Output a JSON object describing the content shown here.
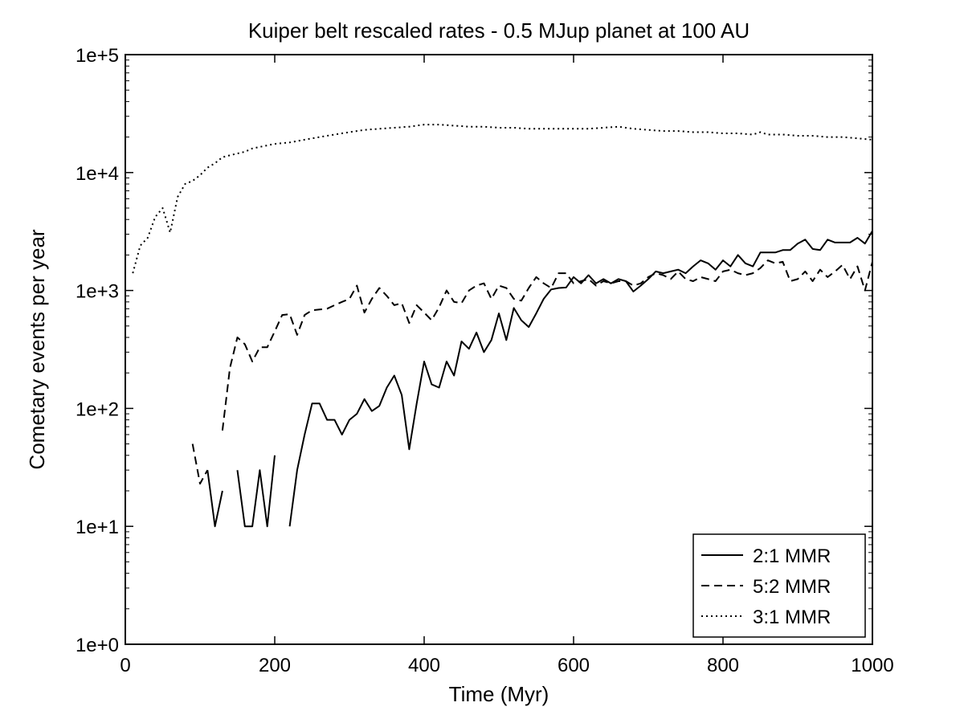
{
  "chart_data": {
    "type": "line",
    "title": "Kuiper belt rescaled rates - 0.5 MJup planet at 100 AU",
    "xlabel": "Time (Myr)",
    "ylabel": "Cometary events per year",
    "xlim": [
      0,
      1000
    ],
    "ylim": [
      1,
      100000
    ],
    "yscale": "log",
    "xticks": [
      0,
      200,
      400,
      600,
      800,
      1000
    ],
    "xtick_labels": [
      "0",
      "200",
      "400",
      "600",
      "800",
      "1000"
    ],
    "yticks": [
      1,
      10,
      100,
      1000,
      10000,
      100000
    ],
    "ytick_labels": [
      "1e+0",
      "1e+1",
      "1e+2",
      "1e+3",
      "1e+4",
      "1e+5"
    ],
    "grid": false,
    "legend_position": "bottom-right",
    "series": [
      {
        "name": "2:1 MMR",
        "style": "solid",
        "segments": [
          [
            [
              110,
              30
            ],
            [
              120,
              10
            ],
            [
              130,
              20
            ]
          ],
          [
            [
              150,
              30
            ],
            [
              160,
              10
            ],
            [
              170,
              10
            ],
            [
              180,
              30
            ],
            [
              190,
              10
            ],
            [
              200,
              40
            ]
          ],
          [
            [
              220,
              10
            ],
            [
              230,
              30
            ],
            [
              240,
              60
            ],
            [
              250,
              110
            ],
            [
              260,
              110
            ],
            [
              270,
              80
            ],
            [
              280,
              80
            ],
            [
              290,
              60
            ],
            [
              300,
              80
            ],
            [
              310,
              90
            ],
            [
              320,
              120
            ],
            [
              330,
              95
            ],
            [
              340,
              105
            ],
            [
              350,
              150
            ],
            [
              360,
              190
            ],
            [
              370,
              130
            ],
            [
              380,
              45
            ],
            [
              390,
              110
            ],
            [
              400,
              250
            ],
            [
              410,
              160
            ],
            [
              420,
              150
            ],
            [
              430,
              250
            ],
            [
              440,
              190
            ],
            [
              450,
              370
            ],
            [
              460,
              320
            ],
            [
              470,
              440
            ],
            [
              480,
              300
            ],
            [
              490,
              380
            ],
            [
              500,
              640
            ],
            [
              510,
              380
            ],
            [
              520,
              710
            ],
            [
              530,
              560
            ],
            [
              540,
              490
            ],
            [
              550,
              640
            ],
            [
              560,
              850
            ],
            [
              570,
              1020
            ],
            [
              580,
              1050
            ],
            [
              590,
              1060
            ],
            [
              600,
              1300
            ],
            [
              610,
              1150
            ],
            [
              620,
              1350
            ],
            [
              630,
              1150
            ],
            [
              640,
              1250
            ],
            [
              650,
              1150
            ],
            [
              660,
              1250
            ],
            [
              670,
              1200
            ],
            [
              680,
              980
            ],
            [
              690,
              1100
            ],
            [
              700,
              1250
            ],
            [
              710,
              1450
            ],
            [
              720,
              1400
            ],
            [
              730,
              1450
            ],
            [
              740,
              1500
            ],
            [
              750,
              1400
            ],
            [
              760,
              1600
            ],
            [
              770,
              1800
            ],
            [
              780,
              1700
            ],
            [
              790,
              1500
            ],
            [
              800,
              1800
            ],
            [
              810,
              1600
            ],
            [
              820,
              2000
            ],
            [
              830,
              1700
            ],
            [
              840,
              1600
            ],
            [
              850,
              2100
            ],
            [
              860,
              2100
            ],
            [
              870,
              2100
            ],
            [
              880,
              2200
            ],
            [
              890,
              2200
            ],
            [
              900,
              2500
            ],
            [
              910,
              2700
            ],
            [
              920,
              2250
            ],
            [
              930,
              2200
            ],
            [
              940,
              2700
            ],
            [
              950,
              2550
            ],
            [
              960,
              2550
            ],
            [
              970,
              2550
            ],
            [
              980,
              2800
            ],
            [
              990,
              2500
            ],
            [
              1000,
              3200
            ]
          ]
        ]
      },
      {
        "name": "5:2 MMR",
        "style": "dashed",
        "segments": [
          [
            [
              90,
              50
            ],
            [
              100,
              23
            ],
            [
              110,
              30
            ]
          ],
          [
            [
              130,
              65
            ],
            [
              140,
              220
            ],
            [
              150,
              400
            ],
            [
              160,
              350
            ],
            [
              170,
              250
            ],
            [
              180,
              330
            ],
            [
              190,
              330
            ],
            [
              200,
              450
            ],
            [
              210,
              620
            ],
            [
              220,
              630
            ],
            [
              230,
              420
            ],
            [
              240,
              620
            ],
            [
              250,
              680
            ],
            [
              260,
              690
            ],
            [
              270,
              700
            ],
            [
              280,
              750
            ],
            [
              290,
              800
            ],
            [
              300,
              850
            ],
            [
              310,
              1100
            ],
            [
              320,
              650
            ],
            [
              330,
              850
            ],
            [
              340,
              1050
            ],
            [
              350,
              900
            ],
            [
              360,
              750
            ],
            [
              370,
              780
            ],
            [
              380,
              530
            ],
            [
              390,
              750
            ],
            [
              400,
              650
            ],
            [
              410,
              560
            ],
            [
              420,
              720
            ],
            [
              430,
              1000
            ],
            [
              440,
              800
            ],
            [
              450,
              780
            ],
            [
              460,
              1000
            ],
            [
              470,
              1100
            ],
            [
              480,
              1150
            ],
            [
              490,
              850
            ],
            [
              500,
              1100
            ],
            [
              510,
              1050
            ],
            [
              520,
              850
            ],
            [
              530,
              820
            ],
            [
              540,
              1050
            ],
            [
              550,
              1300
            ],
            [
              560,
              1150
            ],
            [
              570,
              1050
            ],
            [
              580,
              1400
            ],
            [
              590,
              1400
            ],
            [
              600,
              1150
            ],
            [
              610,
              1200
            ],
            [
              620,
              1250
            ],
            [
              630,
              1100
            ],
            [
              640,
              1200
            ],
            [
              650,
              1150
            ],
            [
              660,
              1200
            ],
            [
              670,
              1200
            ],
            [
              680,
              1100
            ],
            [
              690,
              1150
            ],
            [
              700,
              1300
            ],
            [
              710,
              1400
            ],
            [
              720,
              1350
            ],
            [
              730,
              1250
            ],
            [
              740,
              1450
            ],
            [
              750,
              1250
            ],
            [
              760,
              1200
            ],
            [
              770,
              1300
            ],
            [
              780,
              1250
            ],
            [
              790,
              1200
            ],
            [
              800,
              1450
            ],
            [
              810,
              1500
            ],
            [
              820,
              1400
            ],
            [
              830,
              1350
            ],
            [
              840,
              1400
            ],
            [
              850,
              1550
            ],
            [
              860,
              1800
            ],
            [
              870,
              1700
            ],
            [
              880,
              1750
            ],
            [
              890,
              1200
            ],
            [
              900,
              1250
            ],
            [
              910,
              1450
            ],
            [
              920,
              1200
            ],
            [
              930,
              1500
            ],
            [
              940,
              1300
            ],
            [
              950,
              1450
            ],
            [
              960,
              1650
            ],
            [
              970,
              1250
            ],
            [
              980,
              1600
            ],
            [
              990,
              1000
            ],
            [
              1000,
              1750
            ]
          ]
        ]
      },
      {
        "name": "3:1 MMR",
        "style": "dotted",
        "segments": [
          [
            [
              10,
              1400
            ],
            [
              20,
              2400
            ],
            [
              30,
              2800
            ],
            [
              40,
              4200
            ],
            [
              50,
              5000
            ],
            [
              60,
              3100
            ],
            [
              70,
              6200
            ],
            [
              80,
              8000
            ],
            [
              90,
              8500
            ],
            [
              100,
              9500
            ],
            [
              110,
              11000
            ],
            [
              120,
              12000
            ],
            [
              130,
              13500
            ],
            [
              140,
              14000
            ],
            [
              150,
              14500
            ],
            [
              160,
              15000
            ],
            [
              170,
              16000
            ],
            [
              180,
              16500
            ],
            [
              190,
              17000
            ],
            [
              200,
              17500
            ],
            [
              220,
              18000
            ],
            [
              240,
              19000
            ],
            [
              260,
              20000
            ],
            [
              280,
              21000
            ],
            [
              300,
              22000
            ],
            [
              320,
              23000
            ],
            [
              340,
              23500
            ],
            [
              360,
              24000
            ],
            [
              380,
              24500
            ],
            [
              400,
              25500
            ],
            [
              420,
              25500
            ],
            [
              440,
              25000
            ],
            [
              460,
              24500
            ],
            [
              480,
              24500
            ],
            [
              500,
              24000
            ],
            [
              520,
              24000
            ],
            [
              540,
              23500
            ],
            [
              560,
              23500
            ],
            [
              580,
              23500
            ],
            [
              600,
              23500
            ],
            [
              620,
              23500
            ],
            [
              640,
              24000
            ],
            [
              660,
              24500
            ],
            [
              680,
              23500
            ],
            [
              700,
              23000
            ],
            [
              720,
              22500
            ],
            [
              740,
              22500
            ],
            [
              760,
              22000
            ],
            [
              780,
              22000
            ],
            [
              800,
              21500
            ],
            [
              820,
              21500
            ],
            [
              840,
              21000
            ],
            [
              850,
              22000
            ],
            [
              860,
              21000
            ],
            [
              880,
              21000
            ],
            [
              900,
              20500
            ],
            [
              920,
              20500
            ],
            [
              940,
              20000
            ],
            [
              960,
              20000
            ],
            [
              980,
              19500
            ],
            [
              1000,
              19000
            ]
          ]
        ]
      }
    ]
  }
}
